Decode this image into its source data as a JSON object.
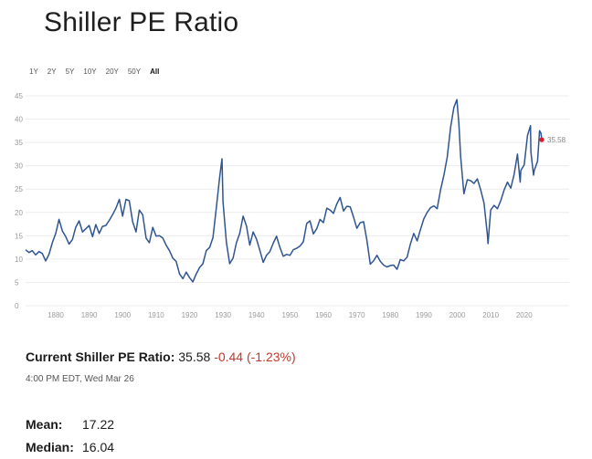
{
  "page": {
    "title": "Shiller PE Ratio"
  },
  "ranges": {
    "items": [
      "1Y",
      "2Y",
      "5Y",
      "10Y",
      "20Y",
      "50Y",
      "All"
    ],
    "active": "All"
  },
  "current": {
    "label": "Current Shiller PE Ratio:",
    "value": "35.58",
    "change": "-0.44 (-1.23%)",
    "timestamp": "4:00 PM EDT, Wed Mar 26"
  },
  "stats": {
    "mean_label": "Mean:",
    "mean_value": "17.22",
    "median_label": "Median:",
    "median_value": "16.04"
  },
  "colors": {
    "line": "#2f5591",
    "marker": "#e01b24",
    "change": "#c0392b"
  },
  "chart_data": {
    "type": "line",
    "title": "Shiller PE Ratio",
    "xlabel": "",
    "ylabel": "",
    "xlim": [
      1871,
      2025.25
    ],
    "ylim": [
      0,
      45
    ],
    "yticks": [
      0,
      5,
      10,
      15,
      20,
      25,
      30,
      35,
      40,
      45
    ],
    "xticks": [
      1880,
      1890,
      1900,
      1910,
      1920,
      1930,
      1940,
      1950,
      1960,
      1970,
      1980,
      1990,
      2000,
      2010,
      2020
    ],
    "grid": true,
    "end_label": "35.58",
    "series": [
      {
        "name": "Shiller PE Ratio",
        "x": [
          1871,
          1872,
          1873,
          1874,
          1875,
          1876,
          1877,
          1878,
          1879,
          1880,
          1881,
          1882,
          1883,
          1884,
          1885,
          1886,
          1887,
          1888,
          1889,
          1890,
          1891,
          1892,
          1893,
          1894,
          1895,
          1896,
          1897,
          1898,
          1899,
          1900,
          1901,
          1902,
          1903,
          1904,
          1905,
          1906,
          1907,
          1908,
          1909,
          1910,
          1911,
          1912,
          1913,
          1914,
          1915,
          1916,
          1917,
          1918,
          1919,
          1920,
          1921,
          1922,
          1923,
          1924,
          1925,
          1926,
          1927,
          1928,
          1929,
          1929.7,
          1930,
          1931,
          1932,
          1933,
          1934,
          1935,
          1936,
          1937,
          1938,
          1939,
          1940,
          1941,
          1942,
          1943,
          1944,
          1945,
          1946,
          1947,
          1948,
          1949,
          1950,
          1951,
          1952,
          1953,
          1954,
          1955,
          1956,
          1957,
          1958,
          1959,
          1960,
          1961,
          1962,
          1963,
          1964,
          1965,
          1966,
          1967,
          1968,
          1969,
          1970,
          1971,
          1972,
          1973,
          1974,
          1975,
          1976,
          1977,
          1978,
          1979,
          1980,
          1981,
          1982,
          1983,
          1984,
          1985,
          1986,
          1987,
          1988,
          1989,
          1990,
          1991,
          1992,
          1993,
          1994,
          1995,
          1996,
          1997,
          1998,
          1999,
          1999.9,
          2000.5,
          2001,
          2002,
          2003,
          2004,
          2005,
          2006,
          2007,
          2008,
          2009,
          2009.2,
          2010,
          2011,
          2012,
          2013,
          2014,
          2015,
          2016,
          2017,
          2018,
          2018.8,
          2019,
          2020,
          2021,
          2021.9,
          2022,
          2022.8,
          2023,
          2024,
          2024.6,
          2025,
          2025.25
        ],
        "values": [
          12.0,
          11.4,
          11.8,
          10.9,
          11.6,
          11.2,
          9.6,
          11.0,
          13.5,
          15.5,
          18.5,
          16.0,
          14.8,
          13.2,
          14.2,
          16.8,
          18.2,
          15.8,
          16.5,
          17.2,
          14.8,
          17.4,
          15.5,
          17.0,
          17.2,
          18.3,
          19.5,
          20.9,
          22.8,
          19.2,
          22.8,
          22.5,
          18.0,
          15.8,
          20.5,
          19.5,
          14.5,
          13.5,
          16.8,
          14.9,
          15.0,
          14.5,
          13.0,
          11.8,
          10.2,
          9.5,
          6.8,
          5.8,
          7.2,
          6.0,
          5.1,
          6.8,
          8.2,
          9.0,
          11.8,
          12.5,
          14.6,
          21.0,
          27.5,
          31.5,
          22.3,
          13.6,
          9.0,
          10.2,
          13.5,
          15.5,
          19.2,
          17.1,
          13.0,
          15.8,
          14.3,
          11.9,
          9.3,
          10.8,
          11.6,
          13.4,
          14.9,
          12.5,
          10.6,
          11.0,
          10.8,
          12.0,
          12.3,
          12.8,
          13.7,
          17.6,
          18.2,
          15.4,
          16.5,
          18.5,
          17.8,
          20.9,
          20.5,
          19.8,
          21.8,
          23.2,
          20.3,
          21.3,
          21.2,
          19.0,
          16.6,
          17.8,
          18.0,
          14.0,
          8.9,
          9.6,
          10.8,
          9.5,
          8.7,
          8.3,
          8.6,
          8.7,
          7.8,
          9.9,
          9.6,
          10.4,
          13.2,
          15.5,
          13.9,
          16.3,
          18.6,
          20.0,
          21.0,
          21.4,
          20.8,
          24.8,
          28.0,
          31.8,
          38.2,
          42.5,
          44.2,
          39.0,
          32.0,
          24.0,
          27.0,
          26.8,
          26.2,
          27.2,
          24.8,
          22.0,
          15.2,
          13.3,
          20.5,
          21.5,
          20.8,
          22.5,
          24.8,
          26.5,
          25.2,
          28.2,
          32.5,
          26.5,
          29.0,
          30.2,
          36.5,
          38.6,
          33.0,
          28.0,
          29.0,
          31.0,
          37.5,
          37.0,
          35.58
        ]
      }
    ]
  }
}
